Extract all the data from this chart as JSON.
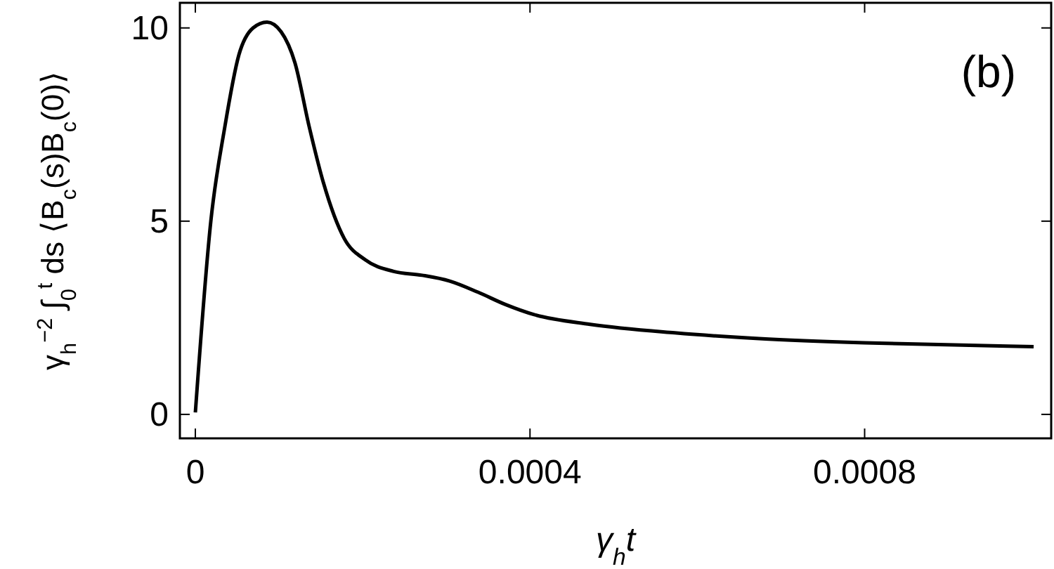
{
  "chart_data": {
    "type": "line",
    "xlabel": "γ$_{h}$t",
    "ylabel": "γ$_{h}$$^{−2}$ ∫$_{0}$$^{t}$ ds ⟨B$_{c}$(s)B$_{c}$(0)⟩",
    "annotations": [
      "(b)"
    ],
    "xlim": [
      -1.85e-05,
      0.001023
    ],
    "ylim": [
      -0.62,
      10.65
    ],
    "xticks": [
      0,
      0.0004,
      0.0008
    ],
    "yticks": [
      0,
      5,
      10
    ],
    "grid": false,
    "line_style": "solid",
    "series": [
      {
        "color": "#000000",
        "x": [
          0,
          1.85e-05,
          3.53e-05,
          5.2e-05,
          6.9e-05,
          8.57e-05,
          0.0001025,
          0.000119,
          0.000136,
          0.000153,
          0.000178,
          0.000203,
          0.000237,
          0.000271,
          0.000304,
          0.000338,
          0.000371,
          0.000405,
          0.000472,
          0.000573,
          0.000674,
          0.0008,
          0.000943,
          0.001002
        ],
        "values": [
          0.05,
          5,
          7.45,
          9.3,
          10,
          10.15,
          9.9,
          9.1,
          7.45,
          6,
          4.55,
          4,
          3.7,
          3.6,
          3.45,
          3.16,
          2.84,
          2.58,
          2.33,
          2.11,
          1.96,
          1.85,
          1.78,
          1.75
        ]
      }
    ]
  }
}
